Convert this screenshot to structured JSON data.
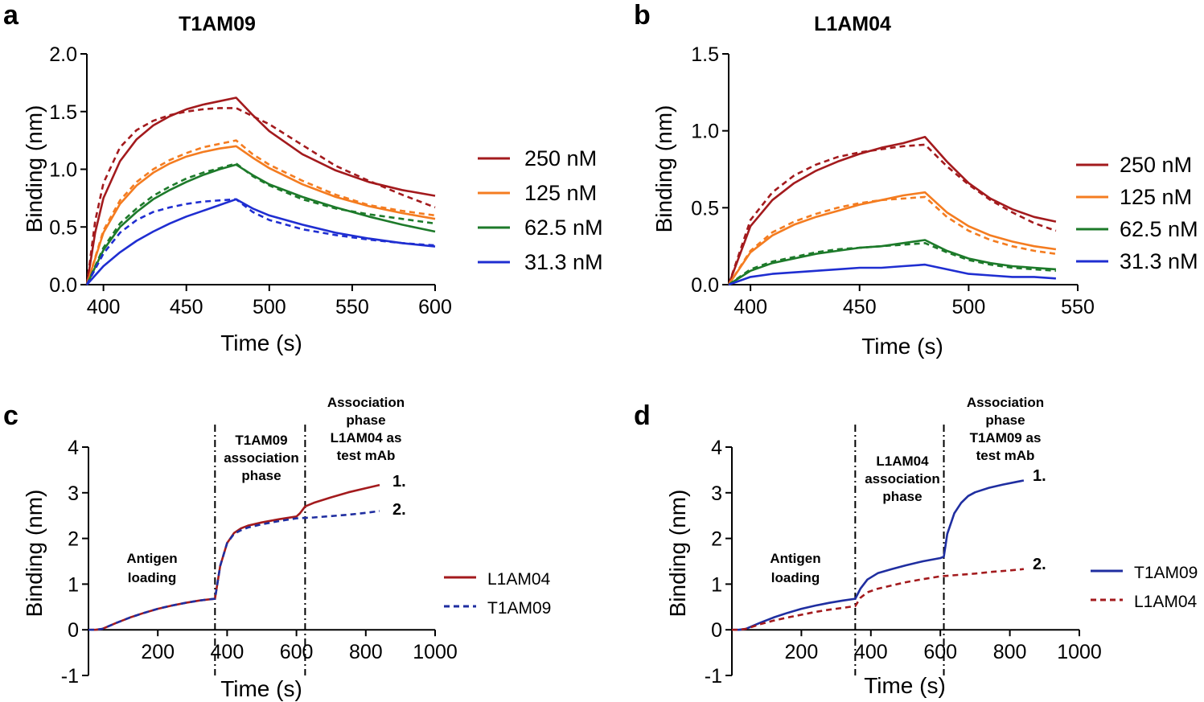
{
  "chart_data": [
    {
      "panel": "a",
      "type": "line",
      "title": "T1AM09",
      "xlabel": "Time (s)",
      "ylabel": "Binding (nm)",
      "xlim": [
        390,
        600
      ],
      "ylim": [
        0,
        2.0
      ],
      "xticks": [
        "400",
        "450",
        "500",
        "550",
        "600"
      ],
      "yticks": [
        "0.0",
        "0.5",
        "1.0",
        "1.5",
        "2.0"
      ],
      "legend_position": "right",
      "series": [
        {
          "name": "250 nM",
          "color": "#a31a1d",
          "style": "solid",
          "x": [
            390,
            395,
            400,
            410,
            420,
            430,
            440,
            450,
            460,
            470,
            480,
            490,
            500,
            520,
            540,
            560,
            580,
            600
          ],
          "values": [
            0,
            0.45,
            0.75,
            1.07,
            1.26,
            1.38,
            1.46,
            1.52,
            1.56,
            1.59,
            1.62,
            1.47,
            1.33,
            1.13,
            0.99,
            0.89,
            0.82,
            0.77
          ]
        },
        {
          "name": "250 nM fit",
          "color": "#a31a1d",
          "style": "dashed",
          "x": [
            390,
            395,
            400,
            410,
            420,
            430,
            440,
            450,
            460,
            470,
            480,
            490,
            500,
            520,
            540,
            560,
            580,
            600
          ],
          "values": [
            0,
            0.55,
            0.88,
            1.19,
            1.34,
            1.42,
            1.47,
            1.5,
            1.52,
            1.53,
            1.53,
            1.46,
            1.39,
            1.21,
            1.03,
            0.9,
            0.78,
            0.67
          ]
        },
        {
          "name": "125 nM",
          "color": "#f47c20",
          "style": "solid",
          "x": [
            390,
            400,
            410,
            420,
            430,
            440,
            450,
            460,
            470,
            480,
            490,
            500,
            520,
            540,
            560,
            580,
            600
          ],
          "values": [
            0,
            0.45,
            0.7,
            0.86,
            0.97,
            1.05,
            1.11,
            1.15,
            1.18,
            1.2,
            1.1,
            1.01,
            0.87,
            0.76,
            0.68,
            0.62,
            0.57
          ]
        },
        {
          "name": "125 nM fit",
          "color": "#f47c20",
          "style": "dashed",
          "x": [
            390,
            400,
            410,
            420,
            430,
            440,
            450,
            460,
            470,
            480,
            490,
            500,
            520,
            540,
            560,
            580,
            600
          ],
          "values": [
            0,
            0.47,
            0.73,
            0.89,
            1.0,
            1.08,
            1.14,
            1.19,
            1.22,
            1.25,
            1.13,
            1.04,
            0.9,
            0.78,
            0.69,
            0.64,
            0.6
          ]
        },
        {
          "name": "62.5 nM",
          "color": "#1d7a2a",
          "style": "solid",
          "x": [
            390,
            400,
            410,
            420,
            430,
            440,
            450,
            460,
            470,
            480,
            490,
            500,
            520,
            540,
            560,
            580,
            600
          ],
          "values": [
            0,
            0.3,
            0.5,
            0.63,
            0.74,
            0.82,
            0.89,
            0.95,
            1.0,
            1.04,
            0.95,
            0.87,
            0.76,
            0.67,
            0.59,
            0.52,
            0.46
          ]
        },
        {
          "name": "62.5 nM fit",
          "color": "#1d7a2a",
          "style": "dashed",
          "x": [
            390,
            400,
            410,
            420,
            430,
            440,
            450,
            460,
            470,
            480,
            490,
            500,
            520,
            540,
            560,
            580,
            600
          ],
          "values": [
            0,
            0.32,
            0.53,
            0.66,
            0.77,
            0.85,
            0.92,
            0.97,
            1.01,
            1.05,
            0.94,
            0.86,
            0.74,
            0.66,
            0.61,
            0.57,
            0.53
          ]
        },
        {
          "name": "31.3 nM",
          "color": "#1f2ed1",
          "style": "solid",
          "x": [
            390,
            400,
            410,
            420,
            430,
            440,
            450,
            460,
            470,
            480,
            490,
            500,
            520,
            540,
            560,
            580,
            600
          ],
          "values": [
            0,
            0.16,
            0.28,
            0.38,
            0.46,
            0.53,
            0.59,
            0.64,
            0.69,
            0.74,
            0.66,
            0.6,
            0.52,
            0.45,
            0.4,
            0.36,
            0.33
          ]
        },
        {
          "name": "31.3 nM fit",
          "color": "#1f2ed1",
          "style": "dashed",
          "x": [
            390,
            400,
            410,
            420,
            430,
            440,
            450,
            460,
            470,
            480,
            490,
            500,
            520,
            540,
            560,
            580,
            600
          ],
          "values": [
            0,
            0.27,
            0.45,
            0.56,
            0.63,
            0.67,
            0.7,
            0.72,
            0.73,
            0.74,
            0.63,
            0.56,
            0.48,
            0.43,
            0.39,
            0.36,
            0.34
          ]
        }
      ],
      "legend": [
        "250 nM",
        "125 nM",
        "62.5 nM",
        "31.3 nM"
      ]
    },
    {
      "panel": "b",
      "type": "line",
      "title": "L1AM04",
      "xlabel": "Time (s)",
      "ylabel": "Binding (nm)",
      "xlim": [
        390,
        550
      ],
      "ylim": [
        0,
        1.5
      ],
      "xticks": [
        "400",
        "450",
        "500",
        "550"
      ],
      "yticks": [
        "0.0",
        "0.5",
        "1.0",
        "1.5"
      ],
      "legend_position": "right",
      "series": [
        {
          "name": "250 nM",
          "color": "#a31a1d",
          "style": "solid",
          "x": [
            390,
            400,
            410,
            420,
            430,
            440,
            450,
            460,
            470,
            480,
            490,
            500,
            510,
            520,
            530,
            540
          ],
          "values": [
            0,
            0.38,
            0.55,
            0.66,
            0.74,
            0.8,
            0.85,
            0.89,
            0.92,
            0.96,
            0.8,
            0.66,
            0.56,
            0.49,
            0.44,
            0.41
          ]
        },
        {
          "name": "250 nM fit",
          "color": "#a31a1d",
          "style": "dashed",
          "x": [
            390,
            400,
            410,
            420,
            430,
            440,
            450,
            460,
            470,
            480,
            490,
            500,
            510,
            520,
            530,
            540
          ],
          "values": [
            0,
            0.42,
            0.6,
            0.71,
            0.78,
            0.83,
            0.86,
            0.88,
            0.9,
            0.91,
            0.77,
            0.65,
            0.55,
            0.47,
            0.4,
            0.35
          ]
        },
        {
          "name": "125 nM",
          "color": "#f47c20",
          "style": "solid",
          "x": [
            390,
            400,
            410,
            420,
            430,
            440,
            450,
            460,
            470,
            480,
            490,
            500,
            510,
            520,
            530,
            540
          ],
          "values": [
            0,
            0.21,
            0.32,
            0.39,
            0.44,
            0.48,
            0.52,
            0.55,
            0.58,
            0.6,
            0.47,
            0.38,
            0.32,
            0.28,
            0.25,
            0.23
          ]
        },
        {
          "name": "125 nM fit",
          "color": "#f47c20",
          "style": "dashed",
          "x": [
            390,
            400,
            410,
            420,
            430,
            440,
            450,
            460,
            470,
            480,
            490,
            500,
            510,
            520,
            530,
            540
          ],
          "values": [
            0,
            0.22,
            0.34,
            0.41,
            0.46,
            0.5,
            0.53,
            0.55,
            0.56,
            0.57,
            0.44,
            0.35,
            0.29,
            0.25,
            0.22,
            0.2
          ]
        },
        {
          "name": "62.5 nM",
          "color": "#1d7a2a",
          "style": "solid",
          "x": [
            390,
            400,
            410,
            420,
            430,
            440,
            450,
            460,
            470,
            480,
            490,
            500,
            510,
            520,
            530,
            540
          ],
          "values": [
            0,
            0.09,
            0.14,
            0.17,
            0.2,
            0.22,
            0.24,
            0.25,
            0.27,
            0.29,
            0.22,
            0.17,
            0.14,
            0.12,
            0.11,
            0.1
          ]
        },
        {
          "name": "62.5 nM fit",
          "color": "#1d7a2a",
          "style": "dashed",
          "x": [
            390,
            400,
            410,
            420,
            430,
            440,
            450,
            460,
            470,
            480,
            490,
            500,
            510,
            520,
            530,
            540
          ],
          "values": [
            0,
            0.1,
            0.15,
            0.18,
            0.21,
            0.23,
            0.24,
            0.25,
            0.26,
            0.27,
            0.21,
            0.16,
            0.13,
            0.11,
            0.1,
            0.09
          ]
        },
        {
          "name": "31.3 nM",
          "color": "#1f2ed1",
          "style": "solid",
          "x": [
            390,
            400,
            410,
            420,
            430,
            440,
            450,
            460,
            470,
            480,
            490,
            500,
            510,
            520,
            530,
            540
          ],
          "values": [
            0,
            0.05,
            0.07,
            0.08,
            0.09,
            0.1,
            0.11,
            0.11,
            0.12,
            0.13,
            0.1,
            0.07,
            0.06,
            0.05,
            0.05,
            0.04
          ]
        }
      ],
      "legend": [
        "250 nM",
        "125 nM",
        "62.5 nM",
        "31.3 nM"
      ]
    },
    {
      "panel": "c",
      "type": "line",
      "xlabel": "Time (s)",
      "ylabel": "Binding (nm)",
      "xlim": [
        0,
        1000
      ],
      "ylim": [
        -1,
        4
      ],
      "xticks": [
        "200",
        "400",
        "600",
        "800",
        "1000"
      ],
      "yticks": [
        "-1",
        "0",
        "1",
        "2",
        "3",
        "4"
      ],
      "vlines": [
        365,
        625
      ],
      "annotations": {
        "antigen": [
          "Antigen",
          "loading"
        ],
        "assoc1": [
          "T1AM09",
          "association",
          "phase"
        ],
        "assoc2": [
          "Association",
          "phase",
          "L1AM04 as",
          "test mAb"
        ],
        "label1": "1.",
        "label2": "2."
      },
      "legend_position": "right",
      "series": [
        {
          "name": "L1AM04",
          "color": "#a31a1d",
          "style": "solid",
          "x": [
            0,
            20,
            40,
            80,
            120,
            160,
            200,
            240,
            280,
            320,
            365,
            380,
            400,
            420,
            440,
            460,
            500,
            550,
            600,
            610,
            625,
            650,
            700,
            750,
            800,
            840
          ],
          "values": [
            0,
            0,
            0.02,
            0.15,
            0.27,
            0.37,
            0.46,
            0.53,
            0.59,
            0.64,
            0.68,
            1.4,
            1.9,
            2.12,
            2.22,
            2.28,
            2.35,
            2.42,
            2.48,
            2.55,
            2.7,
            2.78,
            2.9,
            3.01,
            3.1,
            3.17
          ]
        },
        {
          "name": "T1AM09",
          "color": "#1f2ea0",
          "style": "dashed",
          "x": [
            0,
            20,
            40,
            80,
            120,
            160,
            200,
            240,
            280,
            320,
            365,
            380,
            400,
            420,
            440,
            460,
            500,
            550,
            600,
            650,
            700,
            750,
            800,
            840
          ],
          "values": [
            0,
            0,
            0.02,
            0.15,
            0.27,
            0.37,
            0.46,
            0.53,
            0.59,
            0.64,
            0.68,
            1.4,
            1.9,
            2.1,
            2.18,
            2.24,
            2.31,
            2.38,
            2.44,
            2.46,
            2.49,
            2.52,
            2.56,
            2.6
          ]
        }
      ],
      "legend": [
        "L1AM04",
        "T1AM09"
      ]
    },
    {
      "panel": "d",
      "type": "line",
      "xlabel": "Time (s)",
      "ylabel": "Binding (nm)",
      "xlim": [
        0,
        1000
      ],
      "ylim": [
        -1,
        4
      ],
      "xticks": [
        "200",
        "400",
        "600",
        "800",
        "1000"
      ],
      "yticks": [
        "-1",
        "0",
        "1",
        "2",
        "3",
        "4"
      ],
      "vlines": [
        355,
        610
      ],
      "annotations": {
        "antigen": [
          "Antigen",
          "loading"
        ],
        "assoc1": [
          "L1AM04",
          "association",
          "phase"
        ],
        "assoc2": [
          "Association",
          "phase",
          "T1AM09 as",
          "test mAb"
        ],
        "label1": "1.",
        "label2": "2."
      },
      "legend_position": "right",
      "series": [
        {
          "name": "T1AM09",
          "color": "#1f2ea0",
          "style": "solid",
          "x": [
            0,
            20,
            40,
            80,
            120,
            160,
            200,
            240,
            280,
            320,
            355,
            370,
            390,
            420,
            460,
            500,
            550,
            600,
            610,
            620,
            640,
            660,
            680,
            700,
            740,
            780,
            820,
            840
          ],
          "values": [
            0,
            0,
            0.02,
            0.15,
            0.27,
            0.37,
            0.46,
            0.53,
            0.59,
            0.64,
            0.68,
            0.9,
            1.1,
            1.24,
            1.33,
            1.41,
            1.5,
            1.57,
            1.6,
            2.1,
            2.55,
            2.78,
            2.93,
            3.01,
            3.11,
            3.18,
            3.24,
            3.27
          ]
        },
        {
          "name": "L1AM04",
          "color": "#a31a1d",
          "style": "dashed",
          "x": [
            0,
            20,
            40,
            80,
            120,
            160,
            200,
            240,
            280,
            320,
            355,
            370,
            390,
            420,
            460,
            500,
            550,
            600,
            650,
            700,
            750,
            800,
            840
          ],
          "values": [
            0,
            0,
            0.02,
            0.12,
            0.2,
            0.27,
            0.33,
            0.39,
            0.44,
            0.48,
            0.52,
            0.7,
            0.82,
            0.9,
            0.97,
            1.04,
            1.11,
            1.17,
            1.2,
            1.23,
            1.27,
            1.3,
            1.33
          ]
        }
      ],
      "legend": [
        "T1AM09",
        "L1AM04"
      ]
    }
  ]
}
